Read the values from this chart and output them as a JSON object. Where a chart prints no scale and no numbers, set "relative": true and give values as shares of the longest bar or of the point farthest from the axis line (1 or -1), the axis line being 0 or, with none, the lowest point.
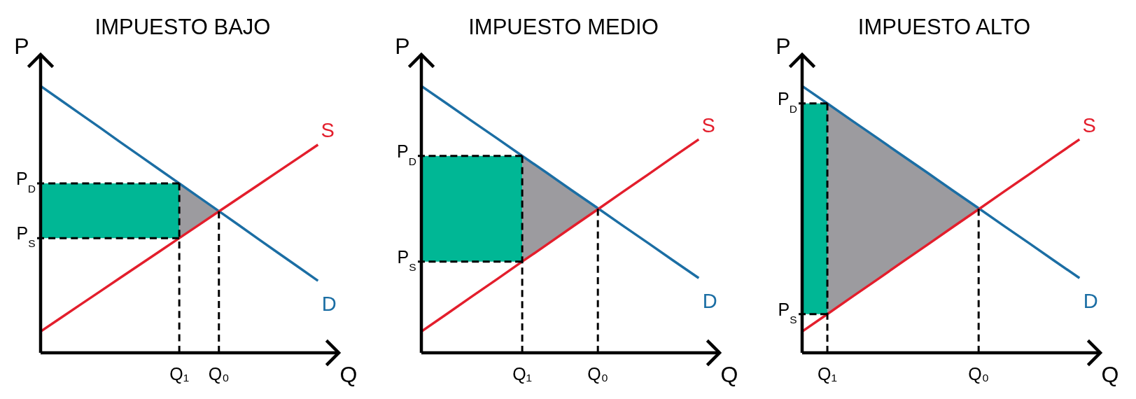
{
  "chart_data": [
    {
      "type": "line",
      "title": "IMPUESTO BAJO",
      "xlabel": "Q",
      "ylabel": "P",
      "relative": true,
      "categories": [
        null,
        null,
        null,
        null,
        null,
        null,
        null,
        "Q₁",
        null,
        "Q₀",
        null,
        null,
        null,
        null,
        null
      ],
      "annotations": [
        {
          "text": "P$_{D}$",
          "x": "Q₁",
          "y": 0.635
        },
        {
          "text": "P$_{S}$",
          "x": "Q₁",
          "y": 0.43
        }
      ],
      "series": [
        {
          "type": "area",
          "color": "#00b795",
          "values": [
            null,
            null,
            null,
            null,
            null,
            null,
            null,
            null,
            null,
            null,
            null,
            null,
            null,
            null,
            null
          ],
          "lower": [
            0.43,
            0.43,
            0.43,
            0.43,
            0.43,
            0.43,
            0.43,
            0.43,
            null,
            null,
            null,
            null,
            null,
            null,
            null
          ],
          "upper": [
            0.635,
            0.635,
            0.635,
            0.635,
            0.635,
            0.635,
            0.635,
            0.635,
            null,
            null,
            null,
            null,
            null,
            null,
            null
          ]
        },
        {
          "type": "area",
          "color": "#9c9b9f",
          "values": [
            null,
            null,
            null,
            null,
            null,
            null,
            null,
            null,
            null,
            null,
            null,
            null,
            null,
            null,
            null
          ],
          "lower": [
            null,
            null,
            null,
            null,
            null,
            null,
            null,
            0.43,
            0.48,
            0.53,
            null,
            null,
            null,
            null,
            null
          ],
          "upper": [
            null,
            null,
            null,
            null,
            null,
            null,
            null,
            0.635,
            0.583,
            0.531,
            null,
            null,
            null,
            null,
            null
          ]
        },
        {
          "name": "D",
          "color": "#1b6ea4",
          "values": [
            1,
            0.948,
            0.896,
            0.844,
            0.791,
            0.739,
            0.687,
            0.635,
            0.583,
            0.531,
            0.479,
            0.426,
            0.374,
            0.322,
            0.27
          ]
        },
        {
          "name": "S",
          "color": "#e31e2c",
          "values": [
            0.08,
            0.13,
            0.18,
            0.23,
            0.28,
            0.33,
            0.38,
            0.43,
            0.48,
            0.53,
            0.58,
            0.63,
            0.68,
            0.73,
            0.78
          ]
        },
        {
          "color": "#000000",
          "line_style": "dashed",
          "x": [
            "Q₀",
            "Q₀"
          ],
          "values": [
            0,
            0.53
          ]
        }
      ]
    },
    {
      "type": "line",
      "title": "IMPUESTO MEDIO",
      "xlabel": "Q",
      "ylabel": "P",
      "relative": true,
      "categories": [
        null,
        null,
        null,
        null,
        "Q₁",
        null,
        null,
        "Q₀",
        null,
        null,
        null,
        null
      ],
      "annotations": [
        {
          "text": "P$_{D}$",
          "x": "Q₁",
          "y": 0.738
        },
        {
          "text": "P$_{S}$",
          "x": "Q₁",
          "y": 0.342
        }
      ],
      "series": [
        {
          "type": "area",
          "color": "#00b795",
          "values": [
            null,
            null,
            null,
            null,
            null,
            null,
            null,
            null,
            null,
            null,
            null,
            null
          ],
          "lower": [
            0.342,
            0.342,
            0.342,
            0.342,
            0.342,
            null,
            null,
            null,
            null,
            null,
            null,
            null
          ],
          "upper": [
            0.738,
            0.738,
            0.738,
            0.738,
            0.738,
            null,
            null,
            null,
            null,
            null,
            null,
            null
          ]
        },
        {
          "type": "area",
          "color": "#9c9b9f",
          "values": [
            null,
            null,
            null,
            null,
            null,
            null,
            null,
            null,
            null,
            null,
            null,
            null
          ],
          "lower": [
            null,
            null,
            null,
            null,
            0.342,
            0.407,
            0.473,
            0.54,
            null,
            null,
            null,
            null
          ],
          "upper": [
            null,
            null,
            null,
            null,
            0.738,
            0.673,
            0.607,
            0.54,
            null,
            null,
            null,
            null
          ]
        },
        {
          "name": "D",
          "color": "#1b6ea4",
          "values": [
            1,
            0.935,
            0.869,
            0.804,
            0.738,
            0.673,
            0.607,
            0.542,
            0.476,
            0.411,
            0.345,
            0.28
          ]
        },
        {
          "name": "S",
          "color": "#e31e2c",
          "values": [
            0.08,
            0.145,
            0.211,
            0.276,
            0.342,
            0.407,
            0.473,
            0.538,
            0.604,
            0.669,
            0.735,
            0.8
          ]
        },
        {
          "color": "#000000",
          "line_style": "dashed",
          "x": [
            "Q₀",
            "Q₀"
          ],
          "values": [
            0,
            0.54
          ]
        }
      ]
    },
    {
      "type": "line",
      "title": "IMPUESTO ALTO",
      "xlabel": "Q",
      "ylabel": "P",
      "relative": true,
      "categories": [
        null,
        "Q₁",
        null,
        null,
        null,
        null,
        null,
        "Q₀",
        null,
        null,
        null,
        null
      ],
      "annotations": [
        {
          "text": "P$_{D}$",
          "x": "Q₁",
          "y": 0.935
        },
        {
          "text": "P$_{S}$",
          "x": "Q₁",
          "y": 0.145
        }
      ],
      "series": [
        {
          "type": "area",
          "color": "#00b795",
          "values": [
            null,
            null,
            null,
            null,
            null,
            null,
            null,
            null,
            null,
            null,
            null,
            null
          ],
          "lower": [
            0.145,
            0.145,
            null,
            null,
            null,
            null,
            null,
            null,
            null,
            null,
            null,
            null
          ],
          "upper": [
            0.935,
            0.935,
            null,
            null,
            null,
            null,
            null,
            null,
            null,
            null,
            null,
            null
          ]
        },
        {
          "type": "area",
          "color": "#9c9b9f",
          "values": [
            null,
            null,
            null,
            null,
            null,
            null,
            null,
            null,
            null,
            null,
            null,
            null
          ],
          "lower": [
            null,
            0.145,
            0.211,
            0.276,
            0.342,
            0.407,
            0.473,
            0.54,
            null,
            null,
            null,
            null
          ],
          "upper": [
            null,
            0.935,
            0.869,
            0.804,
            0.738,
            0.673,
            0.607,
            0.54,
            null,
            null,
            null,
            null
          ]
        },
        {
          "name": "D",
          "color": "#1b6ea4",
          "values": [
            1,
            0.935,
            0.869,
            0.804,
            0.738,
            0.673,
            0.607,
            0.542,
            0.476,
            0.411,
            0.345,
            0.28
          ]
        },
        {
          "name": "S",
          "color": "#e31e2c",
          "values": [
            0.08,
            0.145,
            0.211,
            0.276,
            0.342,
            0.407,
            0.473,
            0.538,
            0.604,
            0.669,
            0.735,
            0.8
          ]
        },
        {
          "color": "#000000",
          "line_style": "dashed",
          "x": [
            "Q₀",
            "Q₀"
          ],
          "values": [
            0,
            0.54
          ]
        }
      ]
    }
  ]
}
